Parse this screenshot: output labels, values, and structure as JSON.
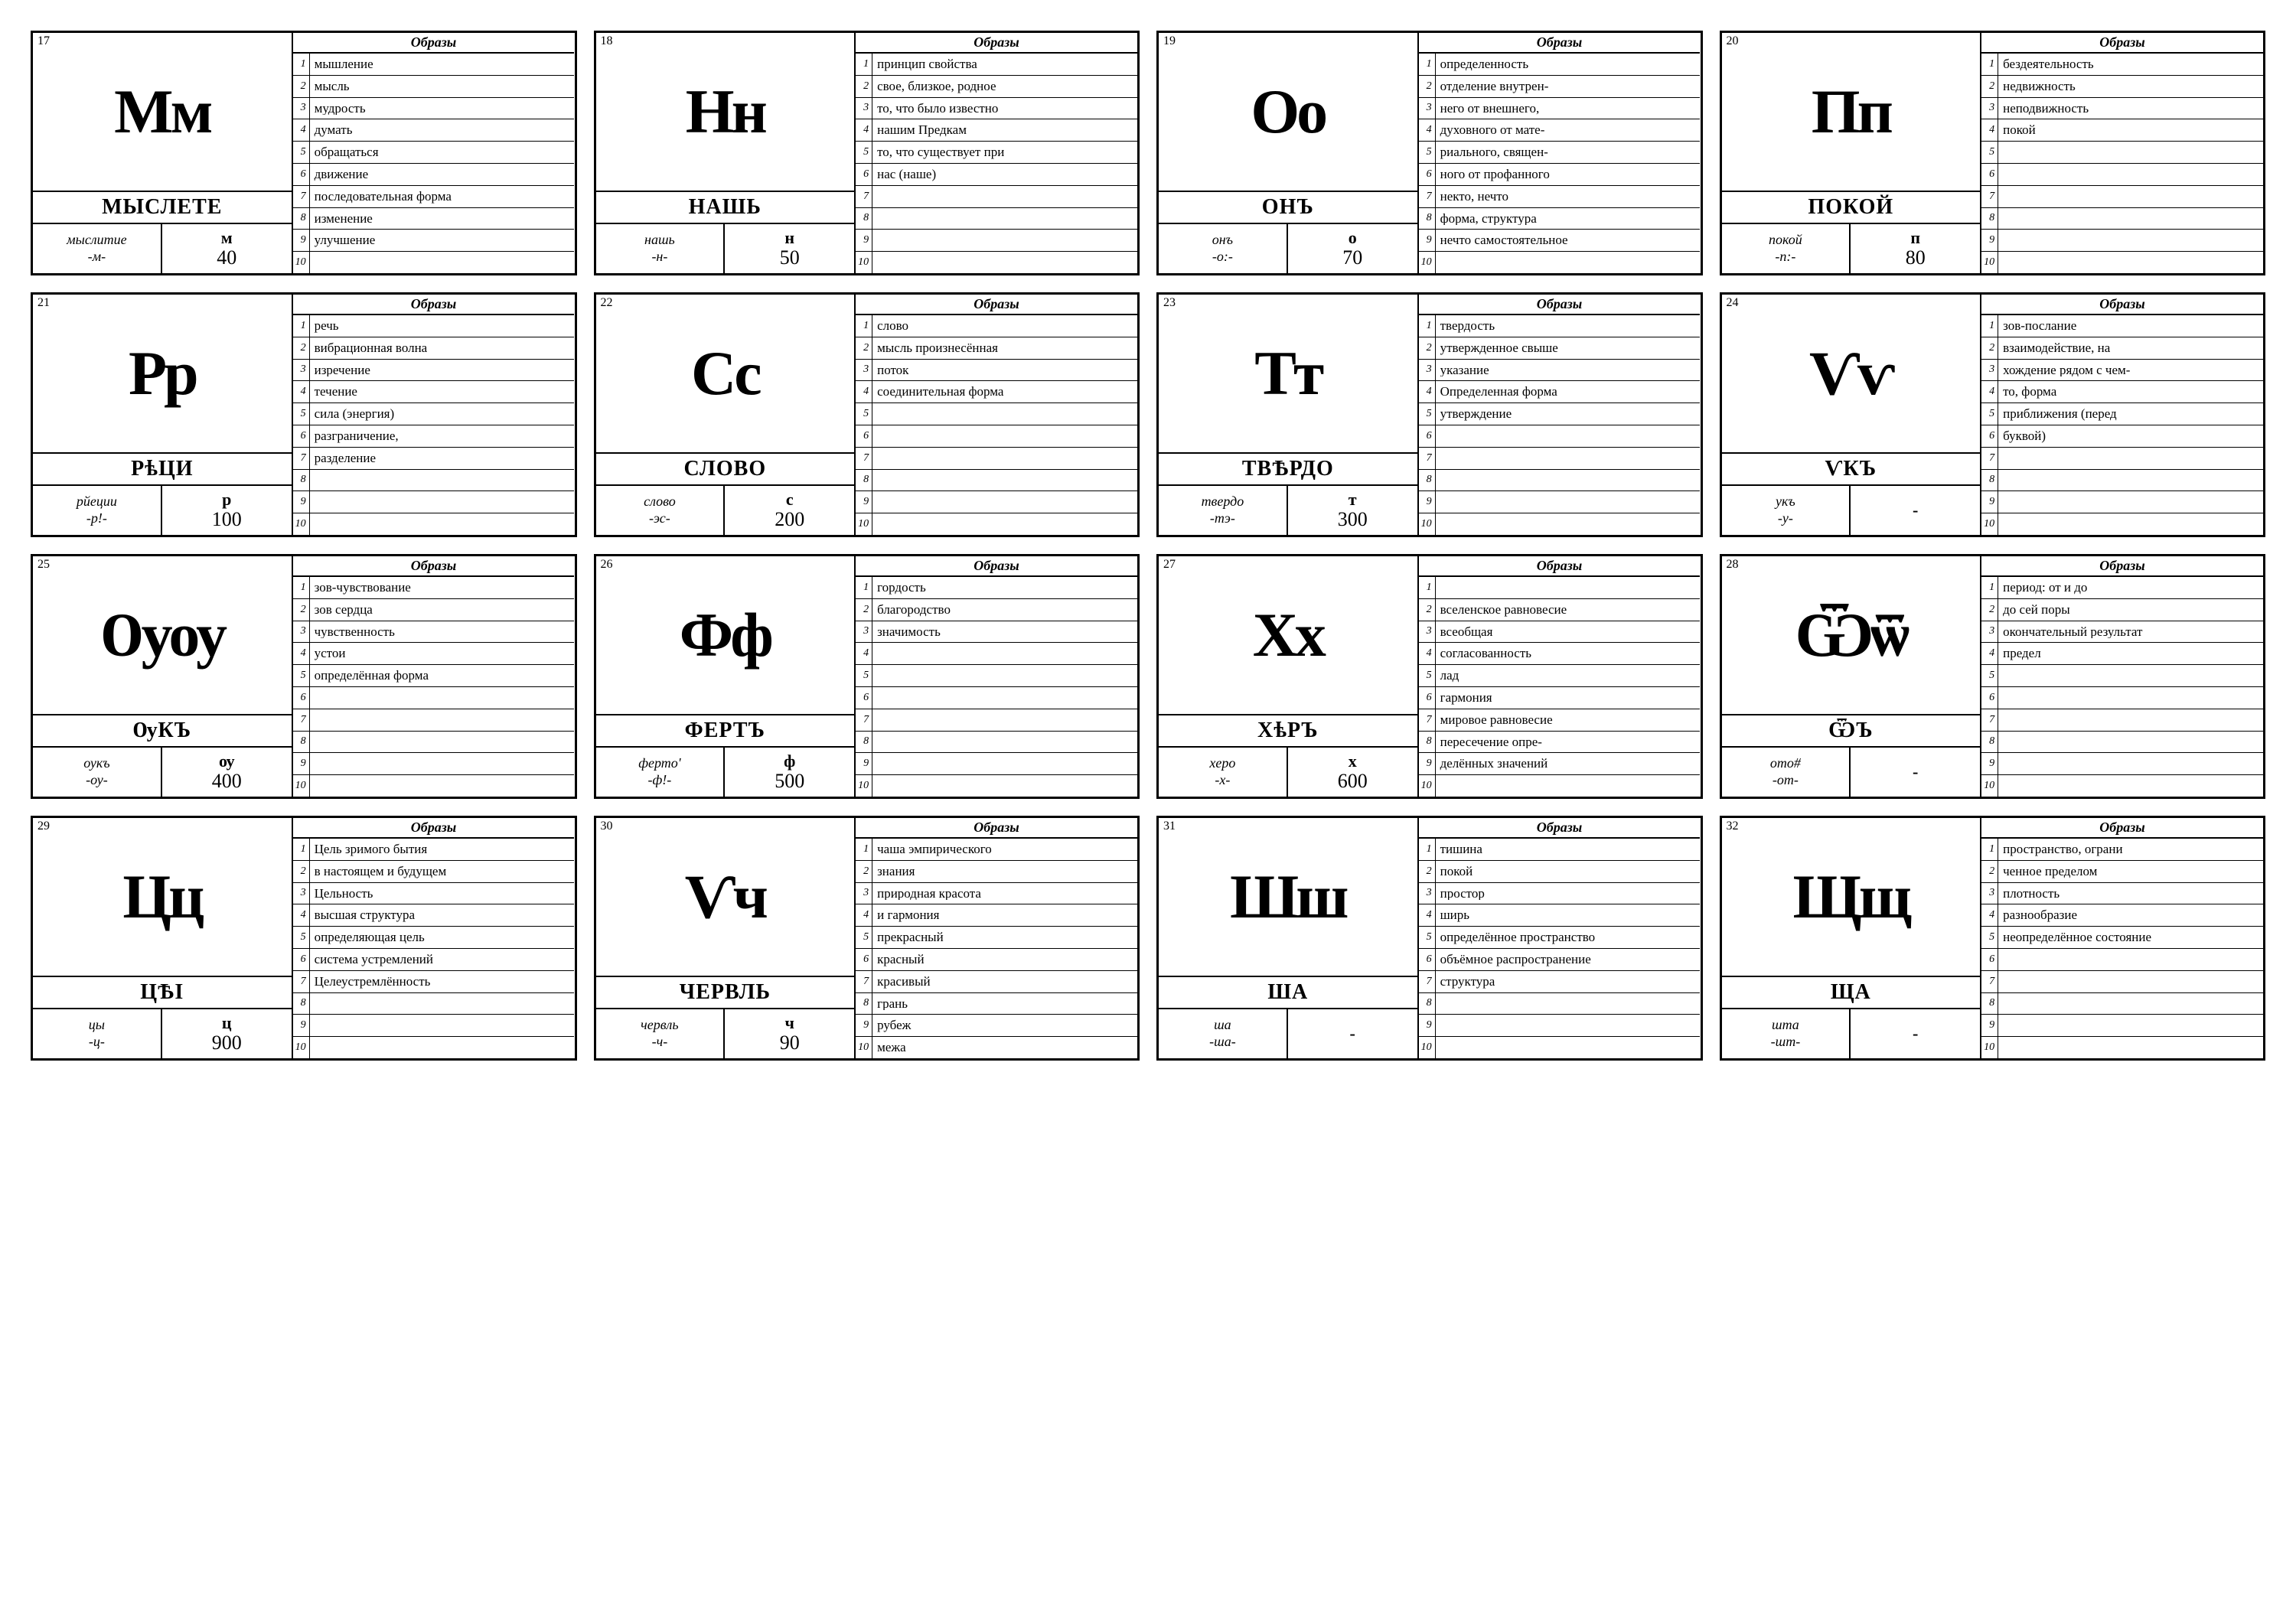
{
  "layout": {
    "grid_cols": 4,
    "grid_rows": 4,
    "card_border": "#000000",
    "background": "#ffffff",
    "glyph_fontsize": 82,
    "name_fontsize": 28,
    "row_fontsize": 17,
    "font_family": "Times New Roman, serif"
  },
  "obrazy_header": "Образы",
  "cards": [
    {
      "n": "17",
      "glyph": "Мм",
      "name": "МЫСЛЕТЕ",
      "pron1": "мыслитие",
      "pron2": "-м-",
      "numsign": "м",
      "numval": "40",
      "meanings": [
        "мышление",
        "мысль",
        "мудрость",
        "думать",
        "обращаться",
        "движение",
        "последовательная форма",
        "изменение",
        "улучшение",
        ""
      ]
    },
    {
      "n": "18",
      "glyph": "Нн",
      "name": "НАШЬ",
      "pron1": "нашь",
      "pron2": "-н-",
      "numsign": "н",
      "numval": "50",
      "meanings": [
        "принцип свойства",
        "свое, близкое, родное",
        "то, что было известно",
        "нашим Предкам",
        "то, что существует при",
        "нас (наше)",
        "",
        "",
        "",
        ""
      ]
    },
    {
      "n": "19",
      "glyph": "Оо",
      "name": "ОНЪ",
      "pron1": "онъ",
      "pron2": "-о:-",
      "numsign": "о",
      "numval": "70",
      "meanings": [
        "определенность",
        "отделение внутрен-",
        "него от внешнего,",
        "духовного от мате-",
        "риального, священ-",
        "ного от профанного",
        "некто, нечто",
        "форма, структура",
        "нечто самостоятельное",
        ""
      ]
    },
    {
      "n": "20",
      "glyph": "Пп",
      "name": "ПОКОЙ",
      "pron1": "покой",
      "pron2": "-п:-",
      "numsign": "п",
      "numval": "80",
      "meanings": [
        "бездеятельность",
        "недвижность",
        "неподвижность",
        "покой",
        "",
        "",
        "",
        "",
        "",
        ""
      ]
    },
    {
      "n": "21",
      "glyph": "Рр",
      "name": "РѣЦИ",
      "pron1": "рйеции",
      "pron2": "-р!-",
      "numsign": "р",
      "numval": "100",
      "meanings": [
        "речь",
        "вибрационная волна",
        "изречение",
        "течение",
        "сила (энергия)",
        "разграничение,",
        "разделение",
        "",
        "",
        ""
      ]
    },
    {
      "n": "22",
      "glyph": "Сс",
      "name": "СЛОВО",
      "pron1": "слово",
      "pron2": "-эс-",
      "numsign": "с",
      "numval": "200",
      "meanings": [
        "слово",
        "мысль произнесённая",
        "поток",
        "соединительная форма",
        "",
        "",
        "",
        "",
        "",
        ""
      ]
    },
    {
      "n": "23",
      "glyph": "Тт",
      "name": "ТВѢРДО",
      "pron1": "твердо",
      "pron2": "-тэ-",
      "numsign": "т",
      "numval": "300",
      "meanings": [
        "твердость",
        "утвержденное свыше",
        "указание",
        "Определенная форма",
        "утверждение",
        "",
        "",
        "",
        "",
        ""
      ]
    },
    {
      "n": "24",
      "glyph": "Ѵѵ",
      "name": "ѴКЪ",
      "pron1": "укъ",
      "pron2": "-у-",
      "numsign": "-",
      "numval": "",
      "meanings": [
        "зов-послание",
        "взаимодействие, на",
        "хождение рядом с чем-",
        "то, форма",
        "приближения (перед",
        "буквой)",
        "",
        "",
        "",
        ""
      ]
    },
    {
      "n": "25",
      "glyph": "Ѹѹ",
      "name": "ѸКЪ",
      "pron1": "оукъ",
      "pron2": "-оу-",
      "numsign": "ѹ",
      "numval": "400",
      "meanings": [
        "зов-чувствование",
        "зов сердца",
        "чувственность",
        "устои",
        "определённая форма",
        "",
        "",
        "",
        "",
        ""
      ]
    },
    {
      "n": "26",
      "glyph": "Фф",
      "name": "ФЕРТЪ",
      "pron1": "ферто'",
      "pron2": "-ф!-",
      "numsign": "ф",
      "numval": "500",
      "meanings": [
        "гордость",
        "благородство",
        "значимость",
        "",
        "",
        "",
        "",
        "",
        "",
        ""
      ]
    },
    {
      "n": "27",
      "glyph": "Хх",
      "name": "ХѣРЪ",
      "pron1": "херо",
      "pron2": "-х-",
      "numsign": "х",
      "numval": "600",
      "meanings": [
        "",
        "вселенское равновесие",
        "всеобщая",
        "согласованность",
        "лад",
        "гармония",
        "мировое равновесие",
        "пересечение опре-",
        "делённых значений",
        ""
      ]
    },
    {
      "n": "28",
      "glyph": "Ѿѿ",
      "name": "ѾЪ",
      "pron1": "ото#",
      "pron2": "-от-",
      "numsign": "-",
      "numval": "",
      "meanings": [
        "период: от и до",
        "до сей поры",
        "окончательный результат",
        "предел",
        "",
        "",
        "",
        "",
        "",
        ""
      ]
    },
    {
      "n": "29",
      "glyph": "Цц",
      "name": "ЦѢІ",
      "pron1": "цы",
      "pron2": "-ц-",
      "numsign": "ц",
      "numval": "900",
      "meanings": [
        "Цель зримого бытия",
        "в настоящем и будущем",
        "Цельность",
        "высшая структура",
        "определяющая цель",
        "система устремлений",
        "Целеустремлённость",
        "",
        "",
        ""
      ]
    },
    {
      "n": "30",
      "glyph": "Ѵч",
      "name": "ЧЕРВЛЬ",
      "pron1": "червль",
      "pron2": "-ч-",
      "numsign": "ч",
      "numval": "90",
      "meanings": [
        "чаша эмпирического",
        "знания",
        "природная красота",
        "и гармония",
        "прекрасный",
        "красный",
        "красивый",
        "грань",
        "рубеж",
        "межа"
      ]
    },
    {
      "n": "31",
      "glyph": "Шш",
      "name": "ША",
      "pron1": "ша",
      "pron2": "-ша-",
      "numsign": "-",
      "numval": "",
      "meanings": [
        "тишина",
        "покой",
        "простор",
        "ширь",
        "определённое пространство",
        "объёмное распространение",
        "структура",
        "",
        "",
        ""
      ]
    },
    {
      "n": "32",
      "glyph": "Щщ",
      "name": "ЩА",
      "pron1": "шта",
      "pron2": "-шт-",
      "numsign": "-",
      "numval": "",
      "meanings": [
        "пространство, ограни",
        "ченное пределом",
        "плотность",
        "разнообразие",
        "неопределённое состояние",
        "",
        "",
        "",
        "",
        ""
      ]
    }
  ]
}
